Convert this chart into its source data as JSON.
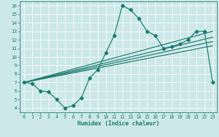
{
  "title": "",
  "xlabel": "Humidex (Indice chaleur)",
  "xlim": [
    -0.5,
    23.5
  ],
  "ylim": [
    3.5,
    16.5
  ],
  "xticks": [
    0,
    1,
    2,
    3,
    4,
    5,
    6,
    7,
    8,
    9,
    10,
    11,
    12,
    13,
    14,
    15,
    16,
    17,
    18,
    19,
    20,
    21,
    22,
    23
  ],
  "yticks": [
    4,
    5,
    6,
    7,
    8,
    9,
    10,
    11,
    12,
    13,
    14,
    15,
    16
  ],
  "bg_color": "#cde8e8",
  "line_color": "#1a7a6e",
  "grid_color": "#ffffff",
  "main_line": {
    "x": [
      0,
      1,
      2,
      3,
      4,
      5,
      6,
      7,
      8,
      9,
      10,
      11,
      12,
      13,
      14,
      15,
      16,
      17,
      18,
      19,
      20,
      21,
      22,
      23
    ],
    "y": [
      7.0,
      6.9,
      6.0,
      5.9,
      5.0,
      4.0,
      4.3,
      5.2,
      7.5,
      8.5,
      10.5,
      12.5,
      16.0,
      15.5,
      14.5,
      13.0,
      12.5,
      11.0,
      11.2,
      11.5,
      12.0,
      13.0,
      13.0,
      7.0
    ]
  },
  "trend_lines": [
    {
      "x": [
        0,
        23
      ],
      "y": [
        7.0,
        13.0
      ]
    },
    {
      "x": [
        0,
        23
      ],
      "y": [
        7.0,
        12.3
      ]
    },
    {
      "x": [
        0,
        23
      ],
      "y": [
        7.0,
        11.8
      ]
    },
    {
      "x": [
        0,
        23
      ],
      "y": [
        7.0,
        11.3
      ]
    }
  ],
  "marker": "D",
  "markersize": 2.5,
  "linewidth": 0.9
}
